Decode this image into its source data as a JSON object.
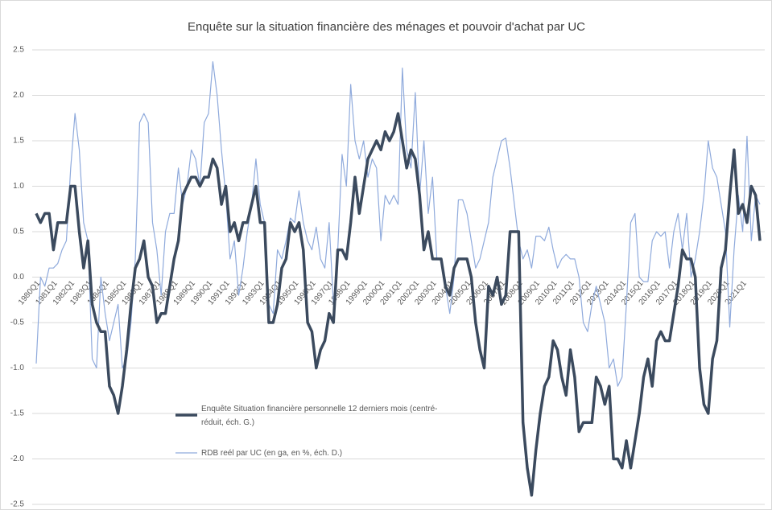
{
  "chart_data": {
    "type": "line",
    "title": "Enquête sur la situation financière des ménages et pouvoir d'achat par UC",
    "categories": [
      "1980Q1",
      null,
      null,
      null,
      "1981Q1",
      null,
      null,
      null,
      "1982Q1",
      null,
      null,
      null,
      "1983Q1",
      null,
      null,
      null,
      "1984Q1",
      null,
      null,
      null,
      "1985Q1",
      null,
      null,
      null,
      "1986Q1",
      null,
      null,
      null,
      "1987Q1",
      null,
      null,
      null,
      "1988Q1",
      null,
      null,
      null,
      "1989Q1",
      null,
      null,
      null,
      "1990Q1",
      null,
      null,
      null,
      "1991Q1",
      null,
      null,
      null,
      "1992Q1",
      null,
      null,
      null,
      "1993Q1",
      null,
      null,
      null,
      "1994Q1",
      null,
      null,
      null,
      "1995Q1",
      null,
      null,
      null,
      "1996Q1",
      null,
      null,
      null,
      "1997Q1",
      null,
      null,
      null,
      "1998Q1",
      null,
      null,
      null,
      "1999Q1",
      null,
      null,
      null,
      "2000Q1",
      null,
      null,
      null,
      "2001Q1",
      null,
      null,
      null,
      "2002Q1",
      null,
      null,
      null,
      "2003Q1",
      null,
      null,
      null,
      "2004Q1",
      null,
      null,
      null,
      "2005Q1",
      null,
      null,
      null,
      "2006Q1",
      null,
      null,
      null,
      "2007Q1",
      null,
      null,
      null,
      "2008Q1",
      null,
      null,
      null,
      "2009Q1",
      null,
      null,
      null,
      "2010Q1",
      null,
      null,
      null,
      "2011Q1",
      null,
      null,
      null,
      "2012Q1",
      null,
      null,
      null,
      "2013Q1",
      null,
      null,
      null,
      "2014Q1",
      null,
      null,
      null,
      "2015Q1",
      null,
      null,
      null,
      "2016Q1",
      null,
      null,
      null,
      "2017Q1",
      null,
      null,
      null,
      "2018Q1",
      null,
      null,
      null,
      "2019Q1",
      null,
      null,
      null,
      "2020Q1",
      null,
      null,
      null,
      "2021Q1",
      null,
      null,
      null,
      null
    ],
    "series": [
      {
        "name": "Enquête Situation financière personnelle 12 derniers mois (centré-réduit, éch. G.)",
        "color": "#3b4a5e",
        "values": [
          0.7,
          0.6,
          0.7,
          0.7,
          0.3,
          0.6,
          0.6,
          0.6,
          1.0,
          1.0,
          0.5,
          0.1,
          0.4,
          -0.3,
          -0.5,
          -0.6,
          -0.6,
          -1.2,
          -1.3,
          -1.5,
          -1.2,
          -0.8,
          -0.3,
          0.1,
          0.2,
          0.4,
          0.0,
          -0.1,
          -0.5,
          -0.4,
          -0.4,
          -0.1,
          0.2,
          0.4,
          0.9,
          1.0,
          1.1,
          1.1,
          1.0,
          1.1,
          1.1,
          1.3,
          1.2,
          0.8,
          1.0,
          0.5,
          0.6,
          0.4,
          0.6,
          0.6,
          0.8,
          1.0,
          0.6,
          0.6,
          -0.5,
          -0.5,
          -0.3,
          0.1,
          0.2,
          0.6,
          0.5,
          0.6,
          0.3,
          -0.5,
          -0.6,
          -1.0,
          -0.8,
          -0.7,
          -0.4,
          -0.5,
          0.3,
          0.3,
          0.2,
          0.6,
          1.1,
          0.7,
          1.0,
          1.3,
          1.4,
          1.5,
          1.4,
          1.6,
          1.5,
          1.6,
          1.8,
          1.5,
          1.2,
          1.4,
          1.3,
          0.9,
          0.3,
          0.5,
          0.2,
          0.2,
          0.2,
          -0.1,
          -0.2,
          0.1,
          0.2,
          0.2,
          0.2,
          0.0,
          -0.5,
          -0.8,
          -1.0,
          -0.1,
          -0.2,
          0.0,
          -0.3,
          -0.2,
          0.5,
          0.5,
          0.5,
          -1.6,
          -2.1,
          -2.4,
          -1.9,
          -1.5,
          -1.2,
          -1.1,
          -0.7,
          -0.8,
          -1.1,
          -1.3,
          -0.8,
          -1.1,
          -1.7,
          -1.6,
          -1.6,
          -1.6,
          -1.1,
          -1.2,
          -1.4,
          -1.2,
          -2.0,
          -2.0,
          -2.1,
          -1.8,
          -2.1,
          -1.8,
          -1.5,
          -1.1,
          -0.9,
          -1.2,
          -0.7,
          -0.6,
          -0.7,
          -0.7,
          -0.4,
          -0.1,
          0.3,
          0.2,
          0.2,
          0.0,
          -1.0,
          -1.4,
          -1.5,
          -0.9,
          -0.7,
          0.1,
          0.3,
          0.9,
          1.4,
          0.7,
          0.8,
          0.6,
          1.0,
          0.9,
          0.4
        ]
      },
      {
        "name": "RDB reél par UC (en ga, en %, éch. D.)",
        "color": "#8faadc",
        "values": [
          -0.95,
          0.0,
          -0.1,
          0.1,
          0.1,
          0.15,
          0.3,
          0.4,
          1.2,
          1.8,
          1.4,
          0.6,
          0.4,
          -0.9,
          -1.0,
          0.0,
          -0.4,
          -0.7,
          -0.5,
          -0.3,
          -1.0,
          -0.9,
          -0.5,
          0.2,
          1.7,
          1.8,
          1.7,
          0.6,
          0.3,
          -0.2,
          0.5,
          0.7,
          0.7,
          1.2,
          0.8,
          1.0,
          1.4,
          1.3,
          1.0,
          1.7,
          1.8,
          2.37,
          2.0,
          1.4,
          0.9,
          0.2,
          0.4,
          -0.2,
          0.1,
          0.5,
          0.8,
          1.3,
          0.8,
          0.6,
          -0.3,
          -0.4,
          0.3,
          0.2,
          0.4,
          0.65,
          0.6,
          0.95,
          0.6,
          0.4,
          0.3,
          0.55,
          0.2,
          0.1,
          0.6,
          -0.3,
          0.3,
          1.35,
          1.0,
          2.12,
          1.5,
          1.3,
          1.5,
          1.1,
          1.3,
          1.2,
          0.4,
          0.9,
          0.8,
          0.9,
          0.8,
          2.3,
          1.4,
          1.2,
          2.03,
          0.9,
          1.5,
          0.7,
          1.1,
          0.2,
          0.2,
          -0.1,
          -0.4,
          0.0,
          0.85,
          0.85,
          0.7,
          0.4,
          0.1,
          0.2,
          0.4,
          0.6,
          1.1,
          1.3,
          1.5,
          1.53,
          1.2,
          0.8,
          0.4,
          0.2,
          0.3,
          0.1,
          0.45,
          0.45,
          0.4,
          0.55,
          0.3,
          0.1,
          0.2,
          0.25,
          0.2,
          0.2,
          0.0,
          -0.5,
          -0.6,
          -0.3,
          -0.1,
          -0.3,
          -0.5,
          -1.0,
          -0.9,
          -1.2,
          -1.1,
          -0.3,
          0.6,
          0.7,
          0.0,
          -0.05,
          -0.05,
          0.4,
          0.5,
          0.45,
          0.5,
          0.1,
          0.5,
          0.7,
          0.3,
          0.7,
          0.0,
          0.2,
          0.5,
          0.9,
          1.5,
          1.2,
          1.1,
          0.8,
          0.5,
          -0.55,
          0.3,
          0.9,
          0.5,
          1.55,
          0.4,
          0.9,
          0.8
        ]
      }
    ],
    "ylim": [
      -2.5,
      2.5
    ],
    "yticks": [
      2.5,
      {
        "value": 2,
        "label": "2.0"
      },
      1.5,
      {
        "value": 1,
        "label": "1.0"
      },
      0.5,
      {
        "value": 0,
        "label": "0.0"
      },
      -0.5,
      {
        "value": -1,
        "label": "-1.0"
      },
      -1.5,
      {
        "value": -2,
        "label": "-2.0"
      },
      -2.5
    ],
    "grid": true
  }
}
